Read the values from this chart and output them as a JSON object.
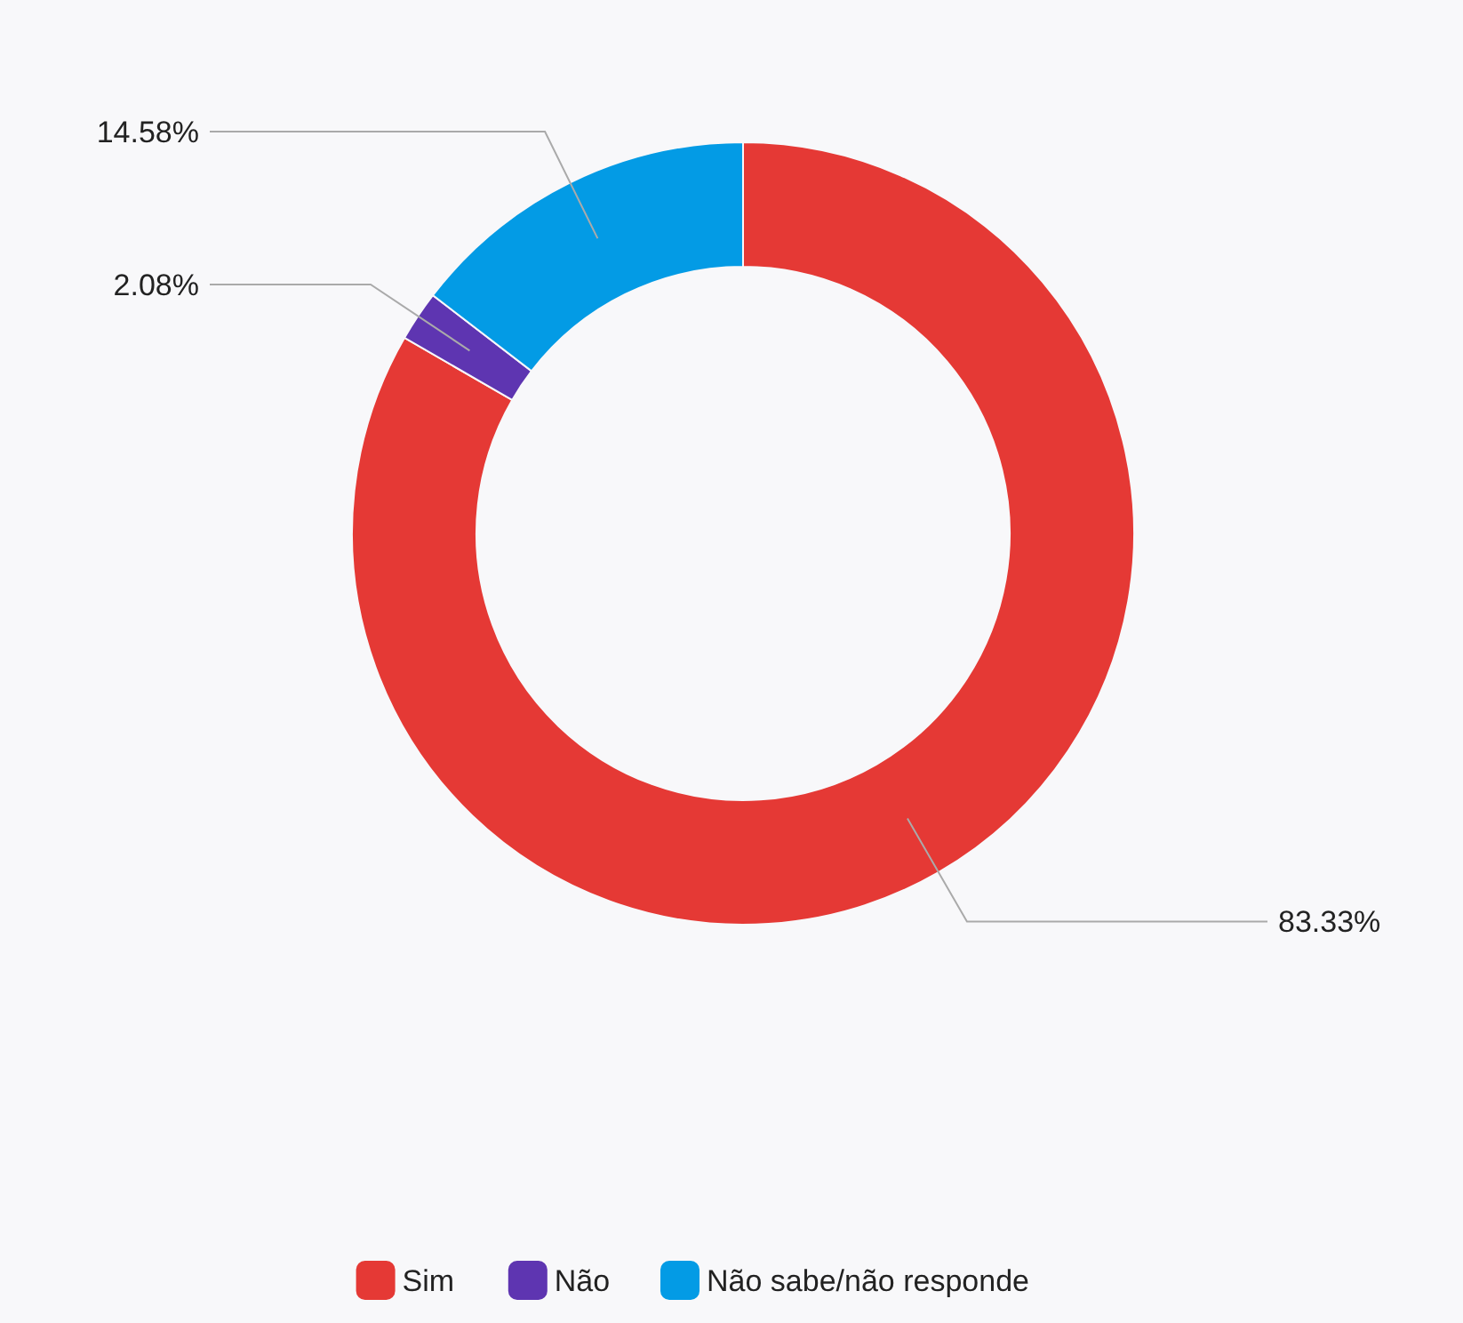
{
  "chart_data": {
    "type": "donut",
    "categories": [
      "Sim",
      "Não",
      "Não sabe/não responde"
    ],
    "values": [
      83.33,
      2.08,
      14.58
    ],
    "value_labels": [
      "83.33%",
      "2.08%",
      "14.58%"
    ],
    "colors": [
      "#e53935",
      "#5e35b1",
      "#039be5"
    ],
    "legend": "bottom"
  }
}
